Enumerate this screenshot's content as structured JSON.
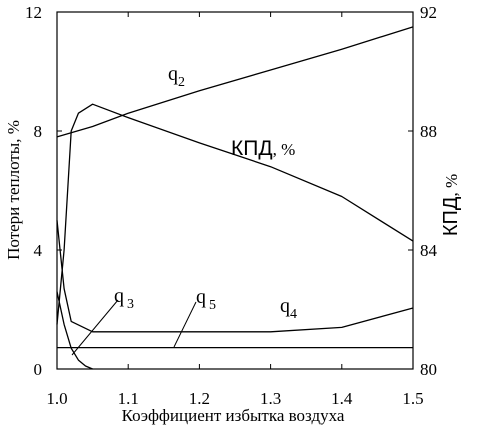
{
  "chart_data": {
    "type": "line",
    "xlabel": "Коэффициент избытка воздуха",
    "ylabel_left": "Потери теплоты, %",
    "ylabel_right": "КПД, %",
    "xlim": [
      1.0,
      1.5
    ],
    "ylim_left": [
      0,
      12
    ],
    "ylim_right": [
      80,
      92
    ],
    "x_ticks": [
      "1.0",
      "1.1",
      "1.2",
      "1.3",
      "1.4",
      "1.5"
    ],
    "y_left_ticks": [
      "0",
      "4",
      "8",
      "12"
    ],
    "y_right_ticks": [
      "80",
      "84",
      "88",
      "92"
    ],
    "series": [
      {
        "name": "q2",
        "axis": "left",
        "x": [
          1.0,
          1.05,
          1.1,
          1.2,
          1.3,
          1.4,
          1.5
        ],
        "y": [
          7.8,
          8.15,
          8.6,
          9.35,
          10.05,
          10.75,
          11.5
        ]
      },
      {
        "name": "КПД",
        "axis": "right",
        "x": [
          1.0,
          1.01,
          1.02,
          1.03,
          1.05,
          1.1,
          1.2,
          1.3,
          1.4,
          1.5
        ],
        "y": [
          81.5,
          84.0,
          88.0,
          88.6,
          88.9,
          88.45,
          87.6,
          86.8,
          85.8,
          84.3
        ]
      },
      {
        "name": "q3",
        "axis": "left",
        "x": [
          1.0,
          1.01,
          1.02,
          1.03,
          1.04,
          1.05
        ],
        "y": [
          2.6,
          1.5,
          0.7,
          0.3,
          0.1,
          0.0
        ]
      },
      {
        "name": "q4",
        "axis": "left",
        "x": [
          1.0,
          1.01,
          1.02,
          1.05,
          1.1,
          1.2,
          1.3,
          1.4,
          1.5
        ],
        "y": [
          5.0,
          2.7,
          1.6,
          1.25,
          1.25,
          1.25,
          1.25,
          1.4,
          2.05
        ]
      },
      {
        "name": "q5",
        "axis": "left",
        "x": [
          1.0,
          1.5
        ],
        "y": [
          0.72,
          0.72
        ]
      }
    ],
    "labels": {
      "q2": {
        "main": "q",
        "sub": "2"
      },
      "q3": {
        "main": "q",
        "sub": "3"
      },
      "q4": {
        "main": "q",
        "sub": "4"
      },
      "q5": {
        "main": "q",
        "sub": "5"
      },
      "kpd": {
        "main": "КПД",
        "unit": ", %"
      },
      "right_axis": {
        "main": "КПД",
        "unit": ", %"
      }
    }
  }
}
